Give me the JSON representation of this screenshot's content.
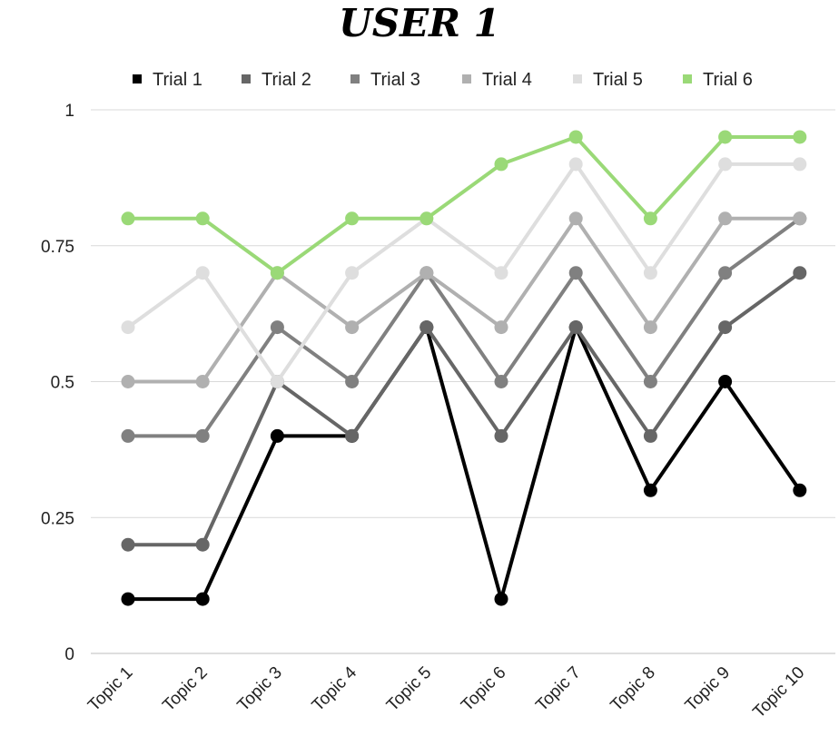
{
  "chart_data": {
    "type": "line",
    "title": "USER 1",
    "xlabel": "",
    "ylabel": "",
    "categories": [
      "Topic 1",
      "Topic 2",
      "Topic 3",
      "Topic 4",
      "Topic 5",
      "Topic 6",
      "Topic 7",
      "Topic 8",
      "Topic 9",
      "Topic 10"
    ],
    "ylim": [
      0,
      1
    ],
    "yticks": [
      0,
      0.25,
      0.5,
      0.75,
      1
    ],
    "ytick_labels": [
      "0",
      "0.25",
      "0.5",
      "0.75",
      "1"
    ],
    "grid": true,
    "legend_position": "top",
    "series": [
      {
        "name": "Trial 1",
        "color": "#000000",
        "values": [
          0.1,
          0.1,
          0.4,
          0.4,
          0.6,
          0.1,
          0.6,
          0.3,
          0.5,
          0.3
        ]
      },
      {
        "name": "Trial 2",
        "color": "#666666",
        "values": [
          0.2,
          0.2,
          0.5,
          0.4,
          0.6,
          0.4,
          0.6,
          0.4,
          0.6,
          0.7
        ]
      },
      {
        "name": "Trial 3",
        "color": "#808080",
        "values": [
          0.4,
          0.4,
          0.6,
          0.5,
          0.7,
          0.5,
          0.7,
          0.5,
          0.7,
          0.8
        ]
      },
      {
        "name": "Trial 4",
        "color": "#b0b0b0",
        "values": [
          0.5,
          0.5,
          0.7,
          0.6,
          0.7,
          0.6,
          0.8,
          0.6,
          0.8,
          0.8
        ]
      },
      {
        "name": "Trial 5",
        "color": "#dedede",
        "values": [
          0.6,
          0.7,
          0.5,
          0.7,
          0.8,
          0.7,
          0.9,
          0.7,
          0.9,
          0.9
        ]
      },
      {
        "name": "Trial 6",
        "color": "#9ad977",
        "values": [
          0.8,
          0.8,
          0.7,
          0.8,
          0.8,
          0.9,
          0.95,
          0.8,
          0.95,
          0.95
        ]
      }
    ]
  }
}
